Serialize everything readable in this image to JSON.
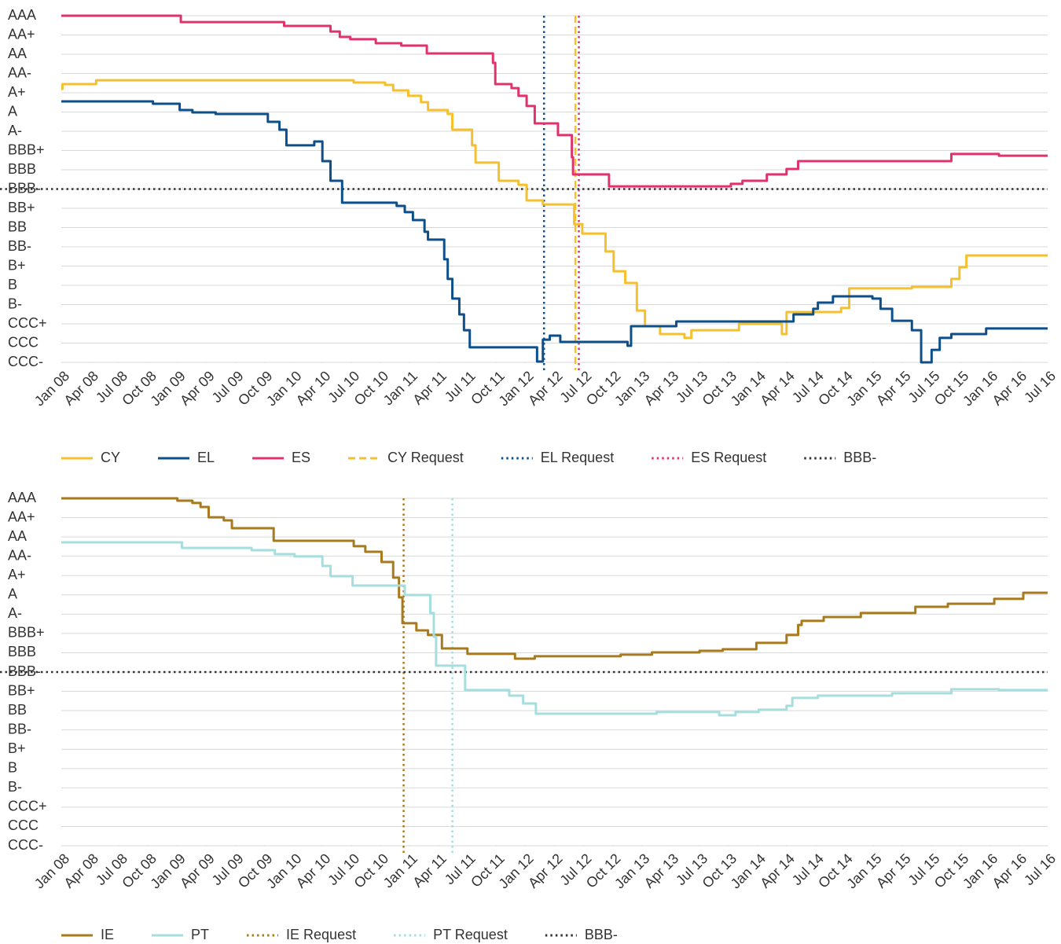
{
  "chart_data": [
    {
      "type": "line",
      "step": true,
      "grid": true,
      "xlim": [
        2008,
        2016.5
      ],
      "ylim": [
        1,
        19
      ],
      "yticks": [
        {
          "value": 19,
          "label": "AAA"
        },
        {
          "value": 18,
          "label": "AA+"
        },
        {
          "value": 17,
          "label": "AA"
        },
        {
          "value": 16,
          "label": "AA-"
        },
        {
          "value": 15,
          "label": "A+"
        },
        {
          "value": 14,
          "label": "A"
        },
        {
          "value": 13,
          "label": "A-"
        },
        {
          "value": 12,
          "label": "BBB+"
        },
        {
          "value": 11,
          "label": "BBB"
        },
        {
          "value": 10,
          "label": "BBB-"
        },
        {
          "value": 9,
          "label": "BB+"
        },
        {
          "value": 8,
          "label": "BB"
        },
        {
          "value": 7,
          "label": "BB-"
        },
        {
          "value": 6,
          "label": "B+"
        },
        {
          "value": 5,
          "label": "B"
        },
        {
          "value": 4,
          "label": "B-"
        },
        {
          "value": 3,
          "label": "CCC+"
        },
        {
          "value": 2,
          "label": "CCC"
        },
        {
          "value": 1,
          "label": "CCC-"
        }
      ],
      "xticks": [
        {
          "value": 2008,
          "label": "Jan 08"
        },
        {
          "value": 2008.25,
          "label": "Apr 08"
        },
        {
          "value": 2008.5,
          "label": "Jul 08"
        },
        {
          "value": 2008.75,
          "label": "Oct 08"
        },
        {
          "value": 2009,
          "label": "Jan 09"
        },
        {
          "value": 2009.25,
          "label": "Apr 09"
        },
        {
          "value": 2009.5,
          "label": "Jul 09"
        },
        {
          "value": 2009.75,
          "label": "Oct 09"
        },
        {
          "value": 2010,
          "label": "Jan 10"
        },
        {
          "value": 2010.25,
          "label": "Apr 10"
        },
        {
          "value": 2010.5,
          "label": "Jul 10"
        },
        {
          "value": 2010.75,
          "label": "Oct 10"
        },
        {
          "value": 2011,
          "label": "Jan 11"
        },
        {
          "value": 2011.25,
          "label": "Apr 11"
        },
        {
          "value": 2011.5,
          "label": "Jul 11"
        },
        {
          "value": 2011.75,
          "label": "Oct 11"
        },
        {
          "value": 2012,
          "label": "Jan 12"
        },
        {
          "value": 2012.25,
          "label": "Apr 12"
        },
        {
          "value": 2012.5,
          "label": "Jul 12"
        },
        {
          "value": 2012.75,
          "label": "Oct 12"
        },
        {
          "value": 2013,
          "label": "Jan 13"
        },
        {
          "value": 2013.25,
          "label": "Apr 13"
        },
        {
          "value": 2013.5,
          "label": "Jul 13"
        },
        {
          "value": 2013.75,
          "label": "Oct 13"
        },
        {
          "value": 2014,
          "label": "Jan 14"
        },
        {
          "value": 2014.25,
          "label": "Apr 14"
        },
        {
          "value": 2014.5,
          "label": "Jul 14"
        },
        {
          "value": 2014.75,
          "label": "Oct 14"
        },
        {
          "value": 2015,
          "label": "Jan 15"
        },
        {
          "value": 2015.25,
          "label": "Apr 15"
        },
        {
          "value": 2015.5,
          "label": "Jul 15"
        },
        {
          "value": 2015.75,
          "label": "Oct 15"
        },
        {
          "value": 2016,
          "label": "Jan 16"
        },
        {
          "value": 2016.25,
          "label": "Apr 16"
        },
        {
          "value": 2016.5,
          "label": "Jul 16"
        }
      ],
      "series": [
        {
          "name": "CY",
          "color": "#f5c02e",
          "x": [
            2008,
            2008.01,
            2008.3,
            2010.52,
            2010.79,
            2010.86,
            2010.99,
            2011.1,
            2011.16,
            2011.33,
            2011.37,
            2011.54,
            2011.57,
            2011.77,
            2011.94,
            2012.01,
            2012.15,
            2012.42,
            2012.49,
            2012.69,
            2012.76,
            2012.86,
            2012.96,
            2013.03,
            2013.16,
            2013.37,
            2013.43,
            2013.84,
            2014.21,
            2014.25,
            2014.72,
            2014.79,
            2015.33,
            2015.67,
            2015.74,
            2015.8,
            2016.5
          ],
          "values": [
            15.2,
            15.45,
            15.65,
            15.53,
            15.41,
            15.12,
            14.84,
            14.51,
            14.1,
            13.9,
            13.08,
            12.27,
            11.37,
            10.43,
            10.22,
            9.41,
            9.2,
            8.18,
            7.69,
            6.76,
            5.73,
            5.12,
            3.69,
            2.88,
            2.47,
            2.27,
            2.67,
            3.0,
            2.47,
            3.61,
            3.82,
            4.84,
            4.92,
            5.33,
            5.94,
            6.55,
            6.55
          ]
        },
        {
          "name": "EL",
          "color": "#0c4f8a",
          "x": [
            2008,
            2008.79,
            2009.02,
            2009.13,
            2009.33,
            2009.78,
            2009.88,
            2009.94,
            2010.18,
            2010.25,
            2010.32,
            2010.42,
            2010.89,
            2010.96,
            2011.03,
            2011.13,
            2011.16,
            2011.3,
            2011.33,
            2011.37,
            2011.43,
            2011.47,
            2011.52,
            2012.1,
            2012.15,
            2012.21,
            2012.3,
            2012.88,
            2012.91,
            2013.3,
            2014.31,
            2014.48,
            2014.52,
            2014.65,
            2014.99,
            2015.06,
            2015.16,
            2015.33,
            2015.41,
            2015.5,
            2015.57,
            2015.67,
            2015.97,
            2016.5
          ],
          "values": [
            14.55,
            14.43,
            14.1,
            13.98,
            13.9,
            13.49,
            13.08,
            12.27,
            12.47,
            11.45,
            10.43,
            9.29,
            9.12,
            8.8,
            8.39,
            7.78,
            7.37,
            6.35,
            5.33,
            4.31,
            3.49,
            2.67,
            1.78,
            1.04,
            2.18,
            2.39,
            2.06,
            1.86,
            2.88,
            3.12,
            3.49,
            3.78,
            4.1,
            4.43,
            4.31,
            3.78,
            3.16,
            2.67,
            1.0,
            1.65,
            2.27,
            2.47,
            2.76,
            2.76
          ]
        },
        {
          "name": "ES",
          "color": "#e0336e",
          "x": [
            2008,
            2009.03,
            2009.92,
            2010.32,
            2010.4,
            2010.49,
            2010.71,
            2010.93,
            2011.15,
            2011.72,
            2011.74,
            2011.88,
            2011.94,
            2012.01,
            2012.08,
            2012.28,
            2012.4,
            2012.41,
            2012.72,
            2013.77,
            2013.87,
            2014.08,
            2014.25,
            2014.35,
            2015.67,
            2016.08,
            2016.5
          ],
          "values": [
            19,
            18.67,
            18.47,
            18.18,
            17.9,
            17.78,
            17.57,
            17.45,
            17.04,
            16.55,
            15.45,
            15.24,
            14.84,
            14.31,
            13.41,
            12.8,
            11.65,
            10.76,
            10.14,
            10.27,
            10.43,
            10.76,
            11.04,
            11.45,
            11.82,
            11.73,
            11.73
          ]
        }
      ],
      "reference_lines": [
        {
          "name": "CY Request",
          "color": "#f5c02e",
          "style": "dashed",
          "x": 2012.43
        },
        {
          "name": "EL Request",
          "color": "#0c4f8a",
          "style": "dotted",
          "x": 2012.16
        },
        {
          "name": "ES Request",
          "color": "#e0336e",
          "style": "dotted",
          "x": 2012.46
        },
        {
          "name": "BBB-",
          "color": "#333333",
          "style": "dotted",
          "y": 10
        }
      ]
    },
    {
      "type": "line",
      "step": true,
      "grid": true,
      "xlim": [
        2008,
        2016.5
      ],
      "ylim": [
        1,
        19
      ],
      "yticks": [
        {
          "value": 19,
          "label": "AAA"
        },
        {
          "value": 18,
          "label": "AA+"
        },
        {
          "value": 17,
          "label": "AA"
        },
        {
          "value": 16,
          "label": "AA-"
        },
        {
          "value": 15,
          "label": "A+"
        },
        {
          "value": 14,
          "label": "A"
        },
        {
          "value": 13,
          "label": "A-"
        },
        {
          "value": 12,
          "label": "BBB+"
        },
        {
          "value": 11,
          "label": "BBB"
        },
        {
          "value": 10,
          "label": "BBB-"
        },
        {
          "value": 9,
          "label": "BB+"
        },
        {
          "value": 8,
          "label": "BB"
        },
        {
          "value": 7,
          "label": "BB-"
        },
        {
          "value": 6,
          "label": "B+"
        },
        {
          "value": 5,
          "label": "B"
        },
        {
          "value": 4,
          "label": "B-"
        },
        {
          "value": 3,
          "label": "CCC+"
        },
        {
          "value": 2,
          "label": "CCC"
        },
        {
          "value": 1,
          "label": "CCC-"
        }
      ],
      "xticks": [
        {
          "value": 2008,
          "label": "Jan 08"
        },
        {
          "value": 2008.25,
          "label": "Apr 08"
        },
        {
          "value": 2008.5,
          "label": "Jul 08"
        },
        {
          "value": 2008.75,
          "label": "Oct 08"
        },
        {
          "value": 2009,
          "label": "Jan 09"
        },
        {
          "value": 2009.25,
          "label": "Apr 09"
        },
        {
          "value": 2009.5,
          "label": "Jul 09"
        },
        {
          "value": 2009.75,
          "label": "Oct 09"
        },
        {
          "value": 2010,
          "label": "Jan 10"
        },
        {
          "value": 2010.25,
          "label": "Apr 10"
        },
        {
          "value": 2010.5,
          "label": "Jul 10"
        },
        {
          "value": 2010.75,
          "label": "Oct 10"
        },
        {
          "value": 2011,
          "label": "Jan 11"
        },
        {
          "value": 2011.25,
          "label": "Apr 11"
        },
        {
          "value": 2011.5,
          "label": "Jul 11"
        },
        {
          "value": 2011.75,
          "label": "Oct 11"
        },
        {
          "value": 2012,
          "label": "Jan 12"
        },
        {
          "value": 2012.25,
          "label": "Apr 12"
        },
        {
          "value": 2012.5,
          "label": "Jul 12"
        },
        {
          "value": 2012.75,
          "label": "Oct 12"
        },
        {
          "value": 2013,
          "label": "Jan 13"
        },
        {
          "value": 2013.25,
          "label": "Apr 13"
        },
        {
          "value": 2013.5,
          "label": "Jul 13"
        },
        {
          "value": 2013.75,
          "label": "Oct 13"
        },
        {
          "value": 2014,
          "label": "Jan 14"
        },
        {
          "value": 2014.25,
          "label": "Apr 14"
        },
        {
          "value": 2014.5,
          "label": "Jul 14"
        },
        {
          "value": 2014.75,
          "label": "Oct 14"
        },
        {
          "value": 2015,
          "label": "Jan 15"
        },
        {
          "value": 2015.25,
          "label": "Apr 15"
        },
        {
          "value": 2015.5,
          "label": "Jul 15"
        },
        {
          "value": 2015.75,
          "label": "Oct 15"
        },
        {
          "value": 2016,
          "label": "Jan 16"
        },
        {
          "value": 2016.25,
          "label": "Apr 16"
        },
        {
          "value": 2016.5,
          "label": "Jul 16"
        }
      ],
      "series": [
        {
          "name": "IE",
          "color": "#a77a1e",
          "x": [
            2008,
            2009,
            2009.13,
            2009.2,
            2009.27,
            2009.4,
            2009.47,
            2009.83,
            2010.52,
            2010.62,
            2010.76,
            2010.86,
            2010.91,
            2010.94,
            2011.06,
            2011.16,
            2011.28,
            2011.5,
            2011.91,
            2012.08,
            2012.82,
            2013.09,
            2013.5,
            2013.7,
            2013.99,
            2014.25,
            2014.35,
            2014.38,
            2014.57,
            2014.89,
            2015.36,
            2015.64,
            2016.04,
            2016.29,
            2016.5
          ],
          "values": [
            19,
            18.88,
            18.76,
            18.55,
            18.02,
            17.86,
            17.45,
            16.8,
            16.52,
            16.23,
            15.7,
            14.89,
            13.87,
            12.53,
            12.16,
            11.92,
            11.22,
            10.94,
            10.69,
            10.82,
            10.9,
            11.02,
            11.1,
            11.18,
            11.51,
            11.92,
            12.44,
            12.65,
            12.85,
            13.06,
            13.38,
            13.54,
            13.79,
            14.11,
            14.11
          ]
        },
        {
          "name": "PT",
          "color": "#a6dede",
          "x": [
            2008,
            2009.04,
            2009.64,
            2009.84,
            2010.01,
            2010.25,
            2010.32,
            2010.51,
            2010.96,
            2011.18,
            2011.21,
            2011.23,
            2011.48,
            2011.86,
            2011.98,
            2012.09,
            2013.13,
            2013.67,
            2013.81,
            2014.01,
            2014.25,
            2014.3,
            2014.52,
            2015.16,
            2015.67,
            2016.08,
            2016.5
          ],
          "values": [
            16.72,
            16.43,
            16.31,
            16.11,
            15.99,
            15.5,
            14.97,
            14.48,
            13.99,
            13.06,
            11.83,
            10.33,
            9.07,
            8.78,
            8.37,
            7.84,
            7.93,
            7.76,
            7.93,
            8.05,
            8.25,
            8.66,
            8.78,
            8.9,
            9.11,
            9.07,
            9.07
          ]
        }
      ],
      "reference_lines": [
        {
          "name": "IE Request",
          "color": "#a77a1e",
          "style": "dotted",
          "x": 2010.95
        },
        {
          "name": "PT Request",
          "color": "#a6dede",
          "style": "dotted",
          "x": 2011.37
        },
        {
          "name": "BBB-",
          "color": "#333333",
          "style": "dotted",
          "y": 10
        }
      ]
    }
  ]
}
